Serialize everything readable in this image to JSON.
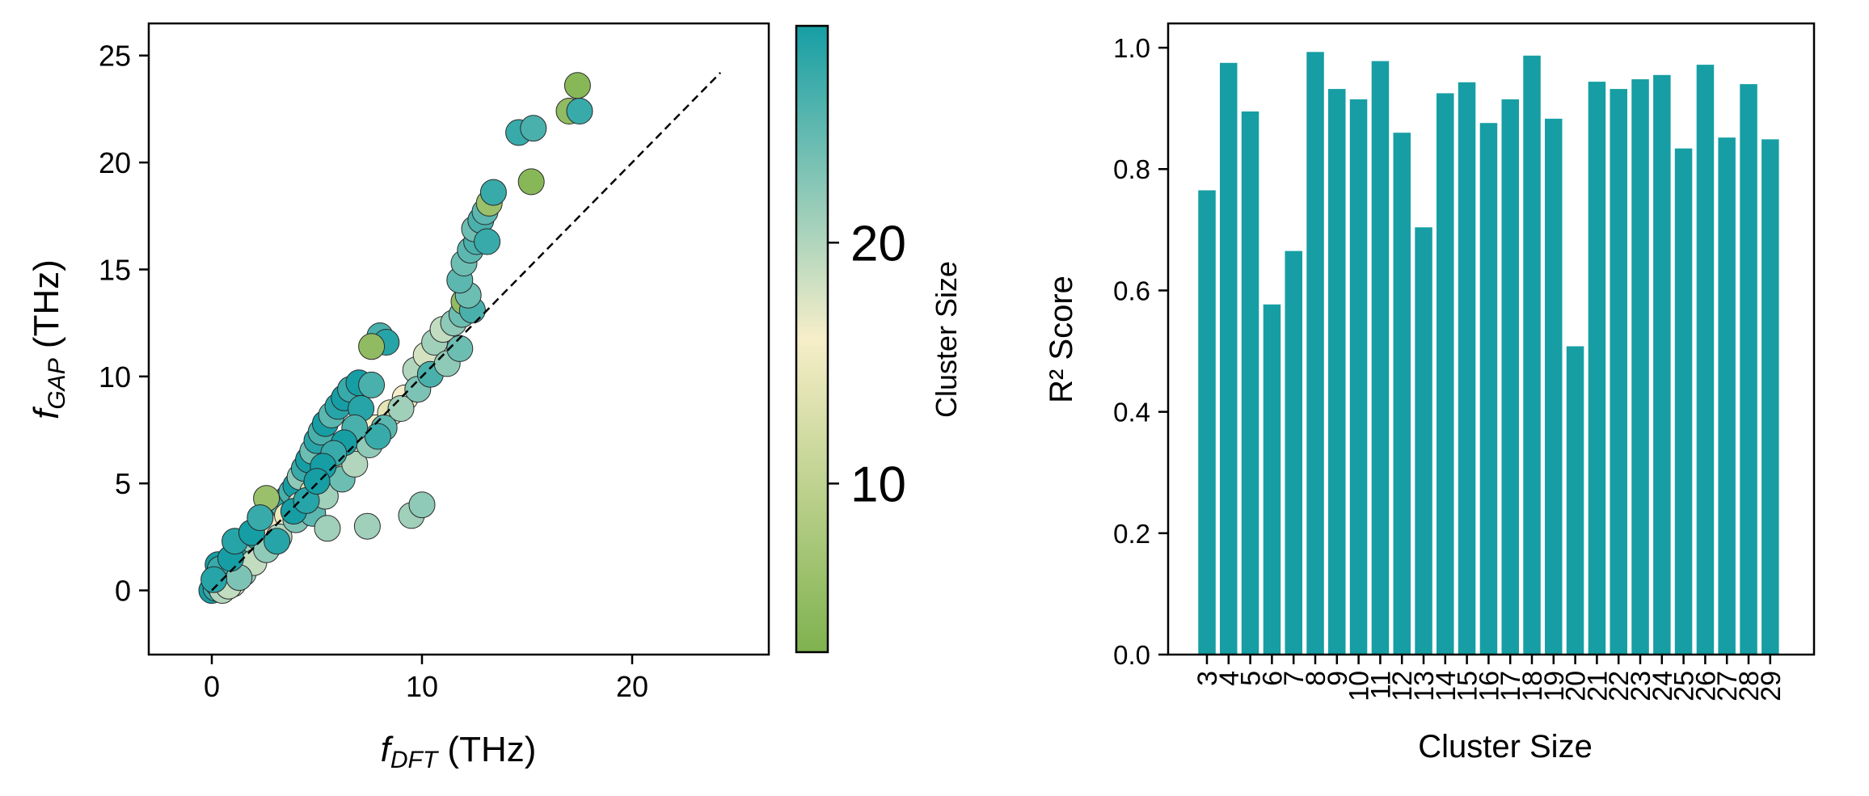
{
  "chart_data": [
    {
      "type": "scatter",
      "title": "",
      "xlabel": "f_DFT (THz)",
      "xlabel_parts": {
        "main": "f",
        "sub": "DFT",
        "unit": " (THz)"
      },
      "ylabel": "f_GAP (THz)",
      "ylabel_parts": {
        "main": "f",
        "sub": "GAP",
        "unit": " (THz)"
      },
      "xlim": [
        -3,
        26.5
      ],
      "ylim": [
        -3,
        26.5
      ],
      "xticks": [
        0,
        10,
        20
      ],
      "yticks": [
        0,
        5,
        10,
        15,
        20,
        25
      ],
      "grid": false,
      "reference_line": {
        "style": "dashed",
        "color": "#000000",
        "x": [
          0,
          24.2
        ],
        "y": [
          0,
          24.2
        ]
      },
      "colorbar": {
        "label": "Cluster Size",
        "range": [
          3,
          29
        ],
        "ticks": [
          10,
          20
        ],
        "colors": [
          "#7fb24f",
          "#f6eec8",
          "#169ea4"
        ]
      },
      "points": [
        {
          "x": 0.0,
          "y": 0.0,
          "c": 29
        },
        {
          "x": 0.2,
          "y": 0.1,
          "c": 27
        },
        {
          "x": 0.3,
          "y": 0.3,
          "c": 25
        },
        {
          "x": 0.5,
          "y": 0.4,
          "c": 29
        },
        {
          "x": 0.6,
          "y": 0.7,
          "c": 22
        },
        {
          "x": 0.8,
          "y": 0.9,
          "c": 28
        },
        {
          "x": 1.0,
          "y": 1.1,
          "c": 26
        },
        {
          "x": 1.2,
          "y": 1.4,
          "c": 29
        },
        {
          "x": 1.4,
          "y": 1.6,
          "c": 24
        },
        {
          "x": 1.6,
          "y": 1.8,
          "c": 27
        },
        {
          "x": 1.8,
          "y": 2.0,
          "c": 29
        },
        {
          "x": 2.0,
          "y": 2.3,
          "c": 21
        },
        {
          "x": 2.2,
          "y": 2.5,
          "c": 28
        },
        {
          "x": 2.4,
          "y": 2.8,
          "c": 26
        },
        {
          "x": 2.6,
          "y": 3.0,
          "c": 29
        },
        {
          "x": 2.8,
          "y": 3.2,
          "c": 23
        },
        {
          "x": 3.0,
          "y": 3.5,
          "c": 27
        },
        {
          "x": 3.2,
          "y": 3.8,
          "c": 29
        },
        {
          "x": 3.4,
          "y": 4.0,
          "c": 25
        },
        {
          "x": 3.6,
          "y": 4.3,
          "c": 28
        },
        {
          "x": 3.8,
          "y": 4.6,
          "c": 26
        },
        {
          "x": 4.0,
          "y": 4.9,
          "c": 29
        },
        {
          "x": 4.2,
          "y": 5.3,
          "c": 22
        },
        {
          "x": 4.4,
          "y": 5.7,
          "c": 27
        },
        {
          "x": 4.6,
          "y": 6.1,
          "c": 29
        },
        {
          "x": 4.8,
          "y": 6.5,
          "c": 24
        },
        {
          "x": 5.0,
          "y": 7.0,
          "c": 28
        },
        {
          "x": 5.2,
          "y": 7.4,
          "c": 26
        },
        {
          "x": 5.4,
          "y": 7.8,
          "c": 29
        },
        {
          "x": 5.7,
          "y": 8.2,
          "c": 25
        },
        {
          "x": 6.0,
          "y": 8.6,
          "c": 28
        },
        {
          "x": 6.3,
          "y": 9.0,
          "c": 29
        },
        {
          "x": 6.6,
          "y": 9.4,
          "c": 27
        },
        {
          "x": 7.0,
          "y": 9.7,
          "c": 29
        },
        {
          "x": 7.6,
          "y": 9.6,
          "c": 26
        },
        {
          "x": 3.0,
          "y": 2.9,
          "c": 16
        },
        {
          "x": 3.6,
          "y": 3.5,
          "c": 15
        },
        {
          "x": 4.2,
          "y": 4.0,
          "c": 17
        },
        {
          "x": 4.8,
          "y": 4.6,
          "c": 14
        },
        {
          "x": 5.5,
          "y": 5.3,
          "c": 16
        },
        {
          "x": 6.2,
          "y": 6.0,
          "c": 15
        },
        {
          "x": 7.0,
          "y": 6.9,
          "c": 17
        },
        {
          "x": 7.8,
          "y": 7.6,
          "c": 16
        },
        {
          "x": 8.5,
          "y": 8.3,
          "c": 14
        },
        {
          "x": 9.2,
          "y": 9.0,
          "c": 16
        },
        {
          "x": 9.7,
          "y": 10.3,
          "c": 20
        },
        {
          "x": 10.2,
          "y": 11.0,
          "c": 18
        },
        {
          "x": 10.6,
          "y": 11.6,
          "c": 21
        },
        {
          "x": 11.0,
          "y": 12.2,
          "c": 19
        },
        {
          "x": 11.5,
          "y": 12.5,
          "c": 22
        },
        {
          "x": 11.9,
          "y": 12.9,
          "c": 24
        },
        {
          "x": 0.5,
          "y": 0.0,
          "c": 20
        },
        {
          "x": 1.0,
          "y": 0.3,
          "c": 18
        },
        {
          "x": 1.5,
          "y": 0.8,
          "c": 21
        },
        {
          "x": 2.0,
          "y": 1.3,
          "c": 19
        },
        {
          "x": 2.6,
          "y": 1.9,
          "c": 22
        },
        {
          "x": 3.2,
          "y": 2.5,
          "c": 20
        },
        {
          "x": 4.0,
          "y": 3.3,
          "c": 23
        },
        {
          "x": 4.8,
          "y": 3.6,
          "c": 25
        },
        {
          "x": 5.4,
          "y": 4.4,
          "c": 21
        },
        {
          "x": 6.2,
          "y": 5.2,
          "c": 24
        },
        {
          "x": 6.8,
          "y": 5.9,
          "c": 20
        },
        {
          "x": 7.5,
          "y": 6.8,
          "c": 22
        },
        {
          "x": 8.2,
          "y": 7.6,
          "c": 25
        },
        {
          "x": 9.0,
          "y": 8.5,
          "c": 21
        },
        {
          "x": 9.8,
          "y": 9.4,
          "c": 23
        },
        {
          "x": 10.4,
          "y": 10.1,
          "c": 26
        },
        {
          "x": 11.2,
          "y": 10.6,
          "c": 22
        },
        {
          "x": 11.8,
          "y": 11.3,
          "c": 24
        },
        {
          "x": 8.0,
          "y": 11.9,
          "c": 26
        },
        {
          "x": 8.3,
          "y": 11.6,
          "c": 28
        },
        {
          "x": 7.6,
          "y": 11.4,
          "c": 5
        },
        {
          "x": 7.9,
          "y": 7.2,
          "c": 27
        },
        {
          "x": 7.1,
          "y": 8.5,
          "c": 28
        },
        {
          "x": 6.8,
          "y": 7.6,
          "c": 26
        },
        {
          "x": 6.3,
          "y": 6.9,
          "c": 29
        },
        {
          "x": 5.8,
          "y": 6.4,
          "c": 27
        },
        {
          "x": 5.3,
          "y": 5.8,
          "c": 29
        },
        {
          "x": 5.5,
          "y": 2.9,
          "c": 21
        },
        {
          "x": 7.4,
          "y": 3.0,
          "c": 21
        },
        {
          "x": 9.5,
          "y": 3.5,
          "c": 21
        },
        {
          "x": 10.0,
          "y": 4.0,
          "c": 22
        },
        {
          "x": 2.6,
          "y": 4.3,
          "c": 6
        },
        {
          "x": 0.3,
          "y": 1.2,
          "c": 29
        },
        {
          "x": 0.4,
          "y": 1.0,
          "c": 27
        },
        {
          "x": 0.8,
          "y": 0.2,
          "c": 19
        },
        {
          "x": 1.3,
          "y": 0.6,
          "c": 23
        },
        {
          "x": 0.1,
          "y": 0.5,
          "c": 28
        },
        {
          "x": 0.9,
          "y": 1.5,
          "c": 29
        },
        {
          "x": 1.1,
          "y": 2.3,
          "c": 28
        },
        {
          "x": 1.9,
          "y": 2.7,
          "c": 29
        },
        {
          "x": 2.3,
          "y": 3.4,
          "c": 27
        },
        {
          "x": 3.9,
          "y": 3.7,
          "c": 29
        },
        {
          "x": 3.1,
          "y": 2.3,
          "c": 28
        },
        {
          "x": 4.5,
          "y": 4.2,
          "c": 28
        },
        {
          "x": 5.0,
          "y": 5.1,
          "c": 29
        },
        {
          "x": 12.0,
          "y": 13.5,
          "c": 5
        },
        {
          "x": 12.4,
          "y": 13.1,
          "c": 26
        },
        {
          "x": 12.2,
          "y": 13.8,
          "c": 24
        },
        {
          "x": 11.8,
          "y": 14.5,
          "c": 25
        },
        {
          "x": 12.0,
          "y": 15.3,
          "c": 24
        },
        {
          "x": 12.3,
          "y": 15.9,
          "c": 25
        },
        {
          "x": 12.6,
          "y": 16.3,
          "c": 26
        },
        {
          "x": 12.5,
          "y": 16.9,
          "c": 24
        },
        {
          "x": 12.8,
          "y": 17.3,
          "c": 26
        },
        {
          "x": 13.0,
          "y": 17.7,
          "c": 25
        },
        {
          "x": 13.1,
          "y": 16.3,
          "c": 27
        },
        {
          "x": 13.2,
          "y": 18.1,
          "c": 6
        },
        {
          "x": 13.4,
          "y": 18.6,
          "c": 27
        },
        {
          "x": 15.2,
          "y": 19.1,
          "c": 4
        },
        {
          "x": 14.6,
          "y": 21.4,
          "c": 27
        },
        {
          "x": 15.3,
          "y": 21.6,
          "c": 26
        },
        {
          "x": 17.0,
          "y": 22.4,
          "c": 5
        },
        {
          "x": 17.5,
          "y": 22.4,
          "c": 27
        },
        {
          "x": 17.4,
          "y": 23.6,
          "c": 4
        }
      ]
    },
    {
      "type": "bar",
      "title": "",
      "xlabel": "Cluster Size",
      "ylabel": "R² Score",
      "ylim": [
        0,
        1.04
      ],
      "yticks": [
        "0.0",
        "0.2",
        "0.4",
        "0.6",
        "0.8",
        "1.0"
      ],
      "grid": false,
      "bar_color": "#169ea4",
      "categories": [
        "3",
        "4",
        "5",
        "6",
        "7",
        "8",
        "9",
        "10",
        "11",
        "12",
        "13",
        "14",
        "15",
        "16",
        "17",
        "18",
        "19",
        "20",
        "21",
        "22",
        "23",
        "24",
        "25",
        "26",
        "27",
        "28",
        "29"
      ],
      "values": [
        0.765,
        0.975,
        0.895,
        0.577,
        0.665,
        0.993,
        0.932,
        0.915,
        0.978,
        0.86,
        0.704,
        0.925,
        0.943,
        0.876,
        0.915,
        0.987,
        0.883,
        0.508,
        0.944,
        0.932,
        0.948,
        0.955,
        0.834,
        0.972,
        0.852,
        0.94,
        0.849
      ]
    }
  ]
}
